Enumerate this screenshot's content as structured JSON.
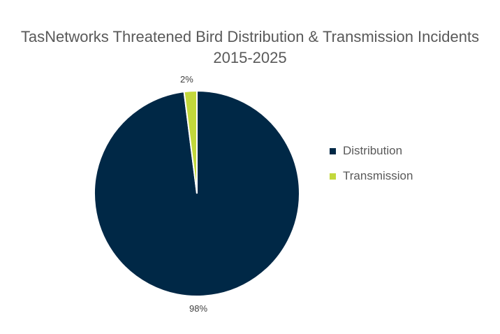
{
  "chart_data": {
    "type": "pie",
    "title": "TasNetworks Threatened Bird Distribution & Transmission Incidents 2015-2025",
    "title_lines": [
      "TasNetworks Threatened Bird Distribution & Transmission Incidents",
      "2015-2025"
    ],
    "categories": [
      "Distribution",
      "Transmission"
    ],
    "values": [
      98,
      2
    ],
    "labels": [
      "98%",
      "2%"
    ],
    "colors": [
      "#002846",
      "#C3D83C"
    ],
    "legend_position": "right"
  }
}
